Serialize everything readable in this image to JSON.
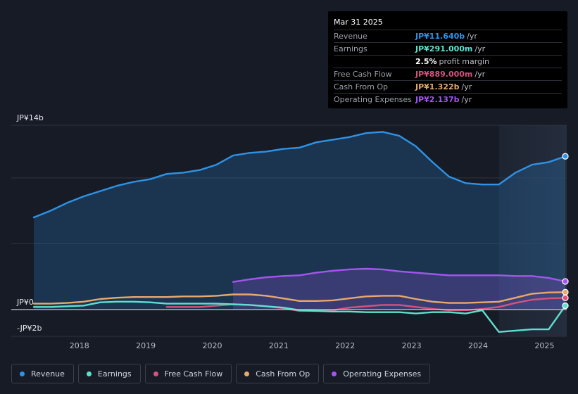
{
  "tooltip": {
    "date": "Mar 31 2025",
    "rows": [
      {
        "label": "Revenue",
        "value": "JP¥11.640b",
        "unit": "/yr",
        "color": "#2e93e6"
      },
      {
        "label": "Earnings",
        "value": "JP¥291.000m",
        "unit": "/yr",
        "color": "#5ee0cf"
      },
      {
        "label": "",
        "value": "2.5%",
        "unit": "profit margin",
        "color": "#ffffff"
      },
      {
        "label": "Free Cash Flow",
        "value": "JP¥889.000m",
        "unit": "/yr",
        "color": "#d6527f"
      },
      {
        "label": "Cash From Op",
        "value": "JP¥1.322b",
        "unit": "/yr",
        "color": "#e8a96a"
      },
      {
        "label": "Operating Expenses",
        "value": "JP¥2.137b",
        "unit": "/yr",
        "color": "#a455f0"
      }
    ]
  },
  "legend": [
    {
      "label": "Revenue",
      "color": "#2e93e6"
    },
    {
      "label": "Earnings",
      "color": "#5ee0cf"
    },
    {
      "label": "Free Cash Flow",
      "color": "#d6527f"
    },
    {
      "label": "Cash From Op",
      "color": "#e8a96a"
    },
    {
      "label": "Operating Expenses",
      "color": "#a455f0"
    }
  ],
  "chart_data": {
    "type": "area",
    "y_unit_labels": {
      "top": "JP¥14b",
      "zero": "JP¥0",
      "bottom": "-JP¥2b"
    },
    "ylim": [
      -2,
      14
    ],
    "xlim": [
      2017.25,
      2025.25
    ],
    "x_ticks": [
      "2018",
      "2019",
      "2020",
      "2021",
      "2022",
      "2023",
      "2024",
      "2025"
    ],
    "forecast_shade_start": 2024.25,
    "series": [
      {
        "name": "Revenue",
        "color": "#2e93e6",
        "fill": true,
        "points": [
          [
            2017.25,
            7.0
          ],
          [
            2017.5,
            7.5
          ],
          [
            2017.75,
            8.1
          ],
          [
            2018.0,
            8.6
          ],
          [
            2018.25,
            9.0
          ],
          [
            2018.5,
            9.4
          ],
          [
            2018.75,
            9.7
          ],
          [
            2019.0,
            9.9
          ],
          [
            2019.25,
            10.3
          ],
          [
            2019.5,
            10.4
          ],
          [
            2019.75,
            10.6
          ],
          [
            2020.0,
            11.0
          ],
          [
            2020.25,
            11.7
          ],
          [
            2020.5,
            11.9
          ],
          [
            2020.75,
            12.0
          ],
          [
            2021.0,
            12.2
          ],
          [
            2021.25,
            12.3
          ],
          [
            2021.5,
            12.7
          ],
          [
            2021.75,
            12.9
          ],
          [
            2022.0,
            13.1
          ],
          [
            2022.25,
            13.4
          ],
          [
            2022.5,
            13.5
          ],
          [
            2022.75,
            13.2
          ],
          [
            2023.0,
            12.4
          ],
          [
            2023.25,
            11.2
          ],
          [
            2023.5,
            10.1
          ],
          [
            2023.75,
            9.6
          ],
          [
            2024.0,
            9.5
          ],
          [
            2024.25,
            9.5
          ],
          [
            2024.5,
            10.4
          ],
          [
            2024.75,
            11.0
          ],
          [
            2025.0,
            11.2
          ],
          [
            2025.25,
            11.64
          ]
        ]
      },
      {
        "name": "Operating Expenses",
        "color": "#a455f0",
        "fill": true,
        "points": [
          [
            2020.25,
            2.1
          ],
          [
            2020.5,
            2.3
          ],
          [
            2020.75,
            2.45
          ],
          [
            2021.0,
            2.55
          ],
          [
            2021.25,
            2.6
          ],
          [
            2021.5,
            2.8
          ],
          [
            2021.75,
            2.95
          ],
          [
            2022.0,
            3.05
          ],
          [
            2022.25,
            3.1
          ],
          [
            2022.5,
            3.05
          ],
          [
            2022.75,
            2.9
          ],
          [
            2023.0,
            2.8
          ],
          [
            2023.25,
            2.7
          ],
          [
            2023.5,
            2.6
          ],
          [
            2023.75,
            2.6
          ],
          [
            2024.0,
            2.6
          ],
          [
            2024.25,
            2.6
          ],
          [
            2024.5,
            2.55
          ],
          [
            2024.75,
            2.55
          ],
          [
            2025.0,
            2.4
          ],
          [
            2025.25,
            2.137
          ]
        ]
      },
      {
        "name": "Cash From Op",
        "color": "#e8a96a",
        "fill": false,
        "points": [
          [
            2017.25,
            0.45
          ],
          [
            2017.5,
            0.45
          ],
          [
            2017.75,
            0.5
          ],
          [
            2018.0,
            0.6
          ],
          [
            2018.25,
            0.8
          ],
          [
            2018.5,
            0.9
          ],
          [
            2018.75,
            0.95
          ],
          [
            2019.0,
            0.95
          ],
          [
            2019.25,
            0.95
          ],
          [
            2019.5,
            1.0
          ],
          [
            2019.75,
            1.0
          ],
          [
            2020.0,
            1.05
          ],
          [
            2020.25,
            1.15
          ],
          [
            2020.5,
            1.15
          ],
          [
            2020.75,
            1.05
          ],
          [
            2021.0,
            0.85
          ],
          [
            2021.25,
            0.65
          ],
          [
            2021.5,
            0.65
          ],
          [
            2021.75,
            0.7
          ],
          [
            2022.0,
            0.85
          ],
          [
            2022.25,
            1.0
          ],
          [
            2022.5,
            1.05
          ],
          [
            2022.75,
            1.05
          ],
          [
            2023.0,
            0.8
          ],
          [
            2023.25,
            0.6
          ],
          [
            2023.5,
            0.5
          ],
          [
            2023.75,
            0.5
          ],
          [
            2024.0,
            0.55
          ],
          [
            2024.25,
            0.6
          ],
          [
            2024.5,
            0.9
          ],
          [
            2024.75,
            1.2
          ],
          [
            2025.0,
            1.3
          ],
          [
            2025.25,
            1.322
          ]
        ]
      },
      {
        "name": "Free Cash Flow",
        "color": "#d6527f",
        "fill": false,
        "points": [
          [
            2019.25,
            0.2
          ],
          [
            2019.5,
            0.2
          ],
          [
            2019.75,
            0.2
          ],
          [
            2020.0,
            0.3
          ],
          [
            2020.25,
            0.4
          ],
          [
            2020.5,
            0.35
          ],
          [
            2020.75,
            0.25
          ],
          [
            2021.0,
            0.1
          ],
          [
            2021.25,
            -0.1
          ],
          [
            2021.5,
            -0.1
          ],
          [
            2021.75,
            -0.05
          ],
          [
            2022.0,
            0.15
          ],
          [
            2022.25,
            0.25
          ],
          [
            2022.5,
            0.35
          ],
          [
            2022.75,
            0.35
          ],
          [
            2023.0,
            0.2
          ],
          [
            2023.25,
            0.05
          ],
          [
            2023.5,
            -0.05
          ],
          [
            2023.75,
            -0.05
          ],
          [
            2024.0,
            0.05
          ],
          [
            2024.25,
            0.2
          ],
          [
            2024.5,
            0.5
          ],
          [
            2024.75,
            0.75
          ],
          [
            2025.0,
            0.85
          ],
          [
            2025.25,
            0.889
          ]
        ]
      },
      {
        "name": "Earnings",
        "color": "#5ee0cf",
        "fill": false,
        "points": [
          [
            2017.25,
            0.2
          ],
          [
            2017.5,
            0.2
          ],
          [
            2017.75,
            0.25
          ],
          [
            2018.0,
            0.3
          ],
          [
            2018.25,
            0.55
          ],
          [
            2018.5,
            0.6
          ],
          [
            2018.75,
            0.6
          ],
          [
            2019.0,
            0.55
          ],
          [
            2019.25,
            0.45
          ],
          [
            2019.5,
            0.45
          ],
          [
            2019.75,
            0.45
          ],
          [
            2020.0,
            0.45
          ],
          [
            2020.25,
            0.4
          ],
          [
            2020.5,
            0.35
          ],
          [
            2020.75,
            0.25
          ],
          [
            2021.0,
            0.15
          ],
          [
            2021.25,
            -0.05
          ],
          [
            2021.5,
            -0.1
          ],
          [
            2021.75,
            -0.15
          ],
          [
            2022.0,
            -0.15
          ],
          [
            2022.25,
            -0.2
          ],
          [
            2022.5,
            -0.2
          ],
          [
            2022.75,
            -0.2
          ],
          [
            2023.0,
            -0.3
          ],
          [
            2023.25,
            -0.2
          ],
          [
            2023.5,
            -0.2
          ],
          [
            2023.75,
            -0.3
          ],
          [
            2024.0,
            -0.05
          ],
          [
            2024.25,
            -1.7
          ],
          [
            2024.5,
            -1.6
          ],
          [
            2024.75,
            -1.5
          ],
          [
            2025.0,
            -1.5
          ],
          [
            2025.25,
            0.291
          ]
        ]
      }
    ]
  }
}
